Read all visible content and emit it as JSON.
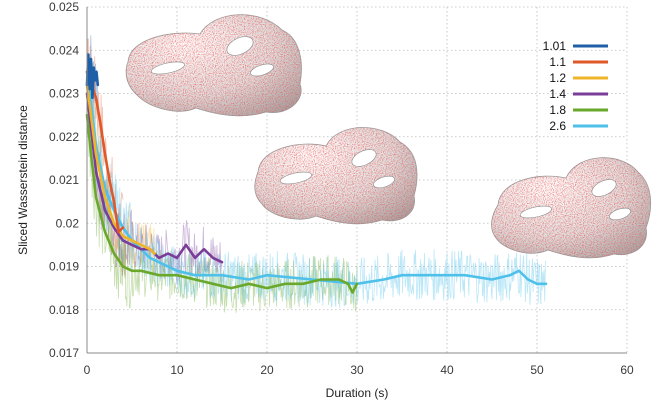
{
  "chart_data": {
    "type": "line",
    "xlabel": "Duration (s)",
    "ylabel": "Sliced Wasserstein distance",
    "xlim": [
      0,
      60
    ],
    "ylim": [
      0.017,
      0.025
    ],
    "xticks": [
      "0",
      "10",
      "20",
      "30",
      "40",
      "50",
      "60"
    ],
    "yticks": [
      "0.017",
      "0.018",
      "0.019",
      "0.02",
      "0.021",
      "0.022",
      "0.023",
      "0.024",
      "0.025"
    ],
    "grid": "dotted",
    "legend_position": "top-right",
    "series": [
      {
        "name": "1.01",
        "color": "#1f5fa8",
        "x": [
          0,
          0.15,
          0.3,
          0.45,
          0.6,
          0.75,
          0.9,
          1.05,
          1.2
        ],
        "y": [
          0.0232,
          0.0239,
          0.0231,
          0.0238,
          0.0229,
          0.0236,
          0.0233,
          0.0235,
          0.0232
        ]
      },
      {
        "name": "1.1",
        "color": "#e0572a",
        "x": [
          0,
          0.5,
          1,
          1.5,
          2,
          2.5,
          3,
          3.5,
          4
        ],
        "y": [
          0.0235,
          0.0232,
          0.0229,
          0.0223,
          0.0216,
          0.021,
          0.0205,
          0.0198,
          0.0199
        ]
      },
      {
        "name": "1.2",
        "color": "#f0b429",
        "x": [
          0,
          1,
          2,
          3,
          4,
          5,
          6,
          7,
          7.5
        ],
        "y": [
          0.0232,
          0.0216,
          0.0206,
          0.02,
          0.0197,
          0.0196,
          0.0195,
          0.0194,
          0.0193
        ]
      },
      {
        "name": "1.4",
        "color": "#7a3d98",
        "x": [
          0,
          1,
          2,
          3,
          4,
          5,
          6,
          7,
          8,
          9,
          10,
          11,
          12,
          13,
          14,
          15
        ],
        "y": [
          0.023,
          0.0212,
          0.0203,
          0.0199,
          0.0196,
          0.0195,
          0.0194,
          0.0194,
          0.0192,
          0.0193,
          0.0192,
          0.0195,
          0.0192,
          0.0194,
          0.0192,
          0.0191
        ]
      },
      {
        "name": "1.8",
        "color": "#6aa82c",
        "x": [
          0,
          0.5,
          1,
          2,
          3,
          4,
          5,
          6,
          8,
          10,
          12,
          14,
          16,
          18,
          20,
          22,
          24,
          26,
          28,
          29,
          29.5,
          30
        ],
        "y": [
          0.0225,
          0.0215,
          0.0206,
          0.0198,
          0.0193,
          0.019,
          0.0189,
          0.0189,
          0.0188,
          0.0188,
          0.0187,
          0.0186,
          0.0185,
          0.0186,
          0.0185,
          0.0186,
          0.0186,
          0.0187,
          0.0187,
          0.0186,
          0.0184,
          0.0186
        ]
      },
      {
        "name": "2.6",
        "color": "#4ec0ea",
        "x": [
          0,
          1,
          2,
          3,
          4,
          5,
          6,
          7,
          8,
          10,
          12,
          15,
          18,
          20,
          25,
          30,
          33,
          35,
          38,
          40,
          42,
          45,
          47,
          48,
          49,
          50,
          51
        ],
        "y": [
          0.0235,
          0.0218,
          0.0208,
          0.0203,
          0.0199,
          0.0196,
          0.0194,
          0.0192,
          0.0191,
          0.0189,
          0.0188,
          0.0188,
          0.0187,
          0.0188,
          0.0187,
          0.0186,
          0.0187,
          0.0188,
          0.0188,
          0.0188,
          0.0188,
          0.0187,
          0.0188,
          0.0189,
          0.0187,
          0.0186,
          0.0186
        ]
      }
    ]
  }
}
